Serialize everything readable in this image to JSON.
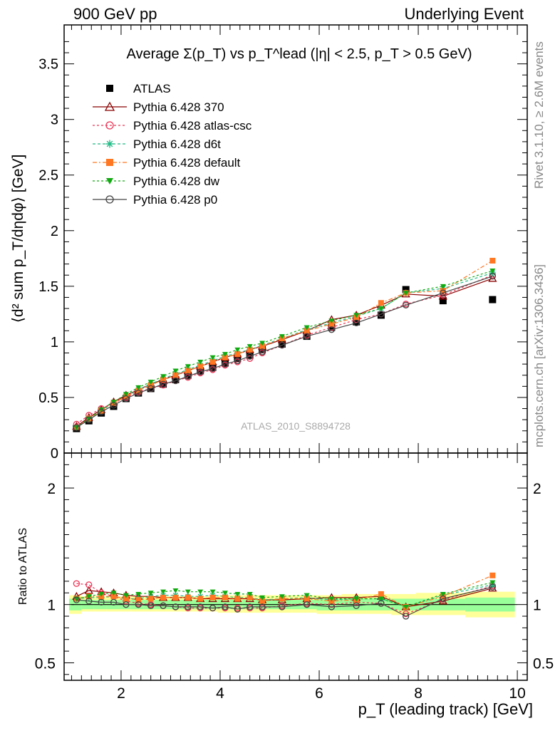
{
  "header": {
    "left": "900 GeV pp",
    "right": "Underlying Event"
  },
  "side_labels": {
    "rivet": "Rivet 3.1.10, ≥ 2.6M events",
    "mcplots": "mcplots.cern.ch [arXiv:1306.3436]"
  },
  "chart_data": [
    {
      "type": "line",
      "panel": "main",
      "title": "Average Σ(p_T) vs p_T^lead (|η| < 2.5, p_T > 0.5 GeV)",
      "ylabel": "⟨d² sum p_T/dηdφ⟩ [GeV]",
      "watermark": "ATLAS_2010_S8894728",
      "xlim": [
        0.85,
        10.2
      ],
      "ylim": [
        0,
        3.85
      ],
      "yticks": [
        0,
        0.5,
        1,
        1.5,
        2,
        2.5,
        3,
        3.5
      ],
      "legend_position": "top-left",
      "x": [
        1.1,
        1.35,
        1.6,
        1.85,
        2.1,
        2.35,
        2.6,
        2.85,
        3.1,
        3.35,
        3.6,
        3.85,
        4.1,
        4.35,
        4.6,
        4.85,
        5.25,
        5.75,
        6.25,
        6.75,
        7.25,
        7.75,
        8.5,
        9.5
      ],
      "series": [
        {
          "name": "ATLAS",
          "color": "#000000",
          "marker": "square",
          "dash": "none",
          "values": [
            0.22,
            0.29,
            0.36,
            0.42,
            0.49,
            0.54,
            0.58,
            0.62,
            0.66,
            0.7,
            0.74,
            0.77,
            0.81,
            0.85,
            0.88,
            0.93,
            0.98,
            1.05,
            1.13,
            1.18,
            1.24,
            1.47,
            1.37,
            1.38
          ]
        },
        {
          "name": "Pythia 6.428 370",
          "color": "#8b0000",
          "marker": "triangle-open",
          "dash": "none",
          "values": [
            0.24,
            0.32,
            0.39,
            0.46,
            0.52,
            0.57,
            0.62,
            0.66,
            0.7,
            0.74,
            0.78,
            0.82,
            0.86,
            0.89,
            0.93,
            0.96,
            1.02,
            1.1,
            1.2,
            1.24,
            1.33,
            1.43,
            1.41,
            1.57
          ]
        },
        {
          "name": "Pythia 6.428 atlas-csc",
          "color": "#ee3355",
          "marker": "circle-open",
          "dash": "3,3",
          "values": [
            0.26,
            0.34,
            0.4,
            0.45,
            0.5,
            0.55,
            0.58,
            0.61,
            0.65,
            0.68,
            0.72,
            0.75,
            0.79,
            0.82,
            0.85,
            0.9,
            0.97,
            1.06,
            1.13,
            1.2,
            1.25,
            1.34,
            1.42,
            1.6
          ]
        },
        {
          "name": "Pythia 6.428 d6t",
          "color": "#22bb88",
          "marker": "star",
          "dash": "4,3",
          "values": [
            0.23,
            0.31,
            0.38,
            0.45,
            0.51,
            0.57,
            0.62,
            0.67,
            0.71,
            0.75,
            0.79,
            0.83,
            0.87,
            0.9,
            0.93,
            0.97,
            1.03,
            1.11,
            1.17,
            1.23,
            1.3,
            1.44,
            1.48,
            1.62
          ]
        },
        {
          "name": "Pythia 6.428 default",
          "color": "#ff7722",
          "marker": "square",
          "dash": "6,3,2,3",
          "values": [
            0.23,
            0.31,
            0.38,
            0.45,
            0.51,
            0.56,
            0.61,
            0.66,
            0.7,
            0.74,
            0.78,
            0.82,
            0.86,
            0.89,
            0.93,
            0.96,
            1.03,
            1.1,
            1.16,
            1.22,
            1.35,
            1.44,
            1.46,
            1.73
          ]
        },
        {
          "name": "Pythia 6.428 dw",
          "color": "#11aa11",
          "marker": "triangle-down",
          "dash": "3,3",
          "values": [
            0.23,
            0.31,
            0.39,
            0.46,
            0.53,
            0.59,
            0.64,
            0.69,
            0.74,
            0.78,
            0.82,
            0.86,
            0.89,
            0.93,
            0.96,
            0.99,
            1.05,
            1.13,
            1.19,
            1.24,
            1.3,
            1.44,
            1.5,
            1.64
          ]
        },
        {
          "name": "Pythia 6.428 p0",
          "color": "#444444",
          "marker": "circle-open",
          "dash": "none",
          "values": [
            0.23,
            0.3,
            0.37,
            0.43,
            0.49,
            0.54,
            0.58,
            0.62,
            0.65,
            0.69,
            0.73,
            0.76,
            0.8,
            0.83,
            0.87,
            0.91,
            0.97,
            1.05,
            1.11,
            1.17,
            1.25,
            1.33,
            1.44,
            1.59
          ]
        }
      ]
    },
    {
      "type": "line",
      "panel": "ratio",
      "ylabel": "Ratio to ATLAS",
      "xlabel": "p_T (leading track) [GeV]",
      "xlim": [
        0.85,
        10.2
      ],
      "xticks": [
        2,
        4,
        6,
        8,
        10
      ],
      "ylim": [
        0.35,
        2.3
      ],
      "yticks": [
        0.5,
        1,
        2
      ],
      "bands": {
        "x_edges": [
          1.0,
          1.25,
          1.5,
          1.75,
          2.0,
          2.25,
          2.5,
          2.75,
          3.0,
          3.25,
          3.5,
          3.75,
          4.0,
          4.25,
          4.5,
          4.75,
          5.0,
          5.5,
          6.0,
          6.5,
          7.0,
          7.5,
          8.0,
          9.0,
          10.0
        ],
        "stat_low": [
          0.95,
          0.96,
          0.96,
          0.96,
          0.96,
          0.96,
          0.96,
          0.96,
          0.96,
          0.96,
          0.96,
          0.96,
          0.96,
          0.96,
          0.96,
          0.96,
          0.96,
          0.96,
          0.95,
          0.95,
          0.95,
          0.95,
          0.95,
          0.94
        ],
        "stat_high": [
          1.05,
          1.04,
          1.04,
          1.04,
          1.04,
          1.04,
          1.04,
          1.04,
          1.04,
          1.04,
          1.04,
          1.04,
          1.04,
          1.04,
          1.04,
          1.04,
          1.04,
          1.04,
          1.05,
          1.05,
          1.05,
          1.05,
          1.05,
          1.06
        ],
        "tot_low": [
          0.92,
          0.94,
          0.94,
          0.94,
          0.94,
          0.94,
          0.94,
          0.94,
          0.94,
          0.94,
          0.94,
          0.94,
          0.93,
          0.93,
          0.93,
          0.93,
          0.93,
          0.93,
          0.92,
          0.92,
          0.92,
          0.91,
          0.91,
          0.89
        ],
        "tot_high": [
          1.08,
          1.07,
          1.07,
          1.07,
          1.07,
          1.07,
          1.07,
          1.07,
          1.07,
          1.07,
          1.07,
          1.07,
          1.08,
          1.08,
          1.08,
          1.08,
          1.08,
          1.08,
          1.08,
          1.09,
          1.09,
          1.09,
          1.1,
          1.11
        ]
      },
      "x": [
        1.1,
        1.35,
        1.6,
        1.85,
        2.1,
        2.35,
        2.6,
        2.85,
        3.1,
        3.35,
        3.6,
        3.85,
        4.1,
        4.35,
        4.6,
        4.85,
        5.25,
        5.75,
        6.25,
        6.75,
        7.25,
        7.75,
        8.5,
        9.5
      ],
      "series": [
        {
          "name": "Pythia 6.428 370",
          "color": "#8b0000",
          "marker": "triangle-open",
          "dash": "none",
          "values": [
            1.07,
            1.12,
            1.11,
            1.1,
            1.08,
            1.07,
            1.07,
            1.06,
            1.06,
            1.06,
            1.05,
            1.05,
            1.05,
            1.05,
            1.05,
            1.04,
            1.04,
            1.05,
            1.06,
            1.06,
            1.07,
            0.98,
            1.03,
            1.14
          ]
        },
        {
          "name": "Pythia 6.428 atlas-csc",
          "color": "#ee3355",
          "marker": "circle-open",
          "dash": "3,3",
          "values": [
            1.18,
            1.17,
            1.1,
            1.07,
            1.03,
            1.01,
            1.0,
            0.99,
            0.98,
            0.97,
            0.97,
            0.97,
            0.97,
            0.97,
            0.97,
            0.97,
            0.99,
            1.01,
            1.0,
            1.02,
            1.01,
            0.92,
            1.04,
            1.16
          ]
        },
        {
          "name": "Pythia 6.428 d6t",
          "color": "#22bb88",
          "marker": "star",
          "dash": "4,3",
          "values": [
            1.05,
            1.06,
            1.06,
            1.07,
            1.05,
            1.05,
            1.07,
            1.08,
            1.08,
            1.07,
            1.07,
            1.08,
            1.07,
            1.06,
            1.06,
            1.04,
            1.05,
            1.06,
            1.04,
            1.05,
            1.05,
            0.98,
            1.08,
            1.17
          ]
        },
        {
          "name": "Pythia 6.428 default",
          "color": "#ff7722",
          "marker": "square",
          "dash": "6,3,2,3",
          "values": [
            1.05,
            1.07,
            1.07,
            1.07,
            1.05,
            1.04,
            1.05,
            1.06,
            1.06,
            1.06,
            1.05,
            1.06,
            1.06,
            1.05,
            1.06,
            1.03,
            1.05,
            1.05,
            1.03,
            1.04,
            1.09,
            0.98,
            1.07,
            1.25
          ]
        },
        {
          "name": "Pythia 6.428 dw",
          "color": "#11aa11",
          "marker": "triangle-down",
          "dash": "3,3",
          "values": [
            1.05,
            1.07,
            1.09,
            1.1,
            1.08,
            1.09,
            1.1,
            1.11,
            1.12,
            1.11,
            1.11,
            1.11,
            1.1,
            1.09,
            1.09,
            1.06,
            1.07,
            1.08,
            1.05,
            1.05,
            1.05,
            0.98,
            1.09,
            1.19
          ]
        },
        {
          "name": "Pythia 6.428 p0",
          "color": "#444444",
          "marker": "circle-open",
          "dash": "none",
          "values": [
            1.04,
            1.03,
            1.02,
            1.02,
            1.0,
            1.0,
            0.99,
            0.99,
            0.98,
            0.98,
            0.98,
            0.97,
            0.98,
            0.96,
            0.98,
            0.98,
            0.98,
            1.0,
            0.98,
            0.99,
            1.01,
            0.9,
            1.05,
            1.15
          ]
        }
      ]
    }
  ]
}
